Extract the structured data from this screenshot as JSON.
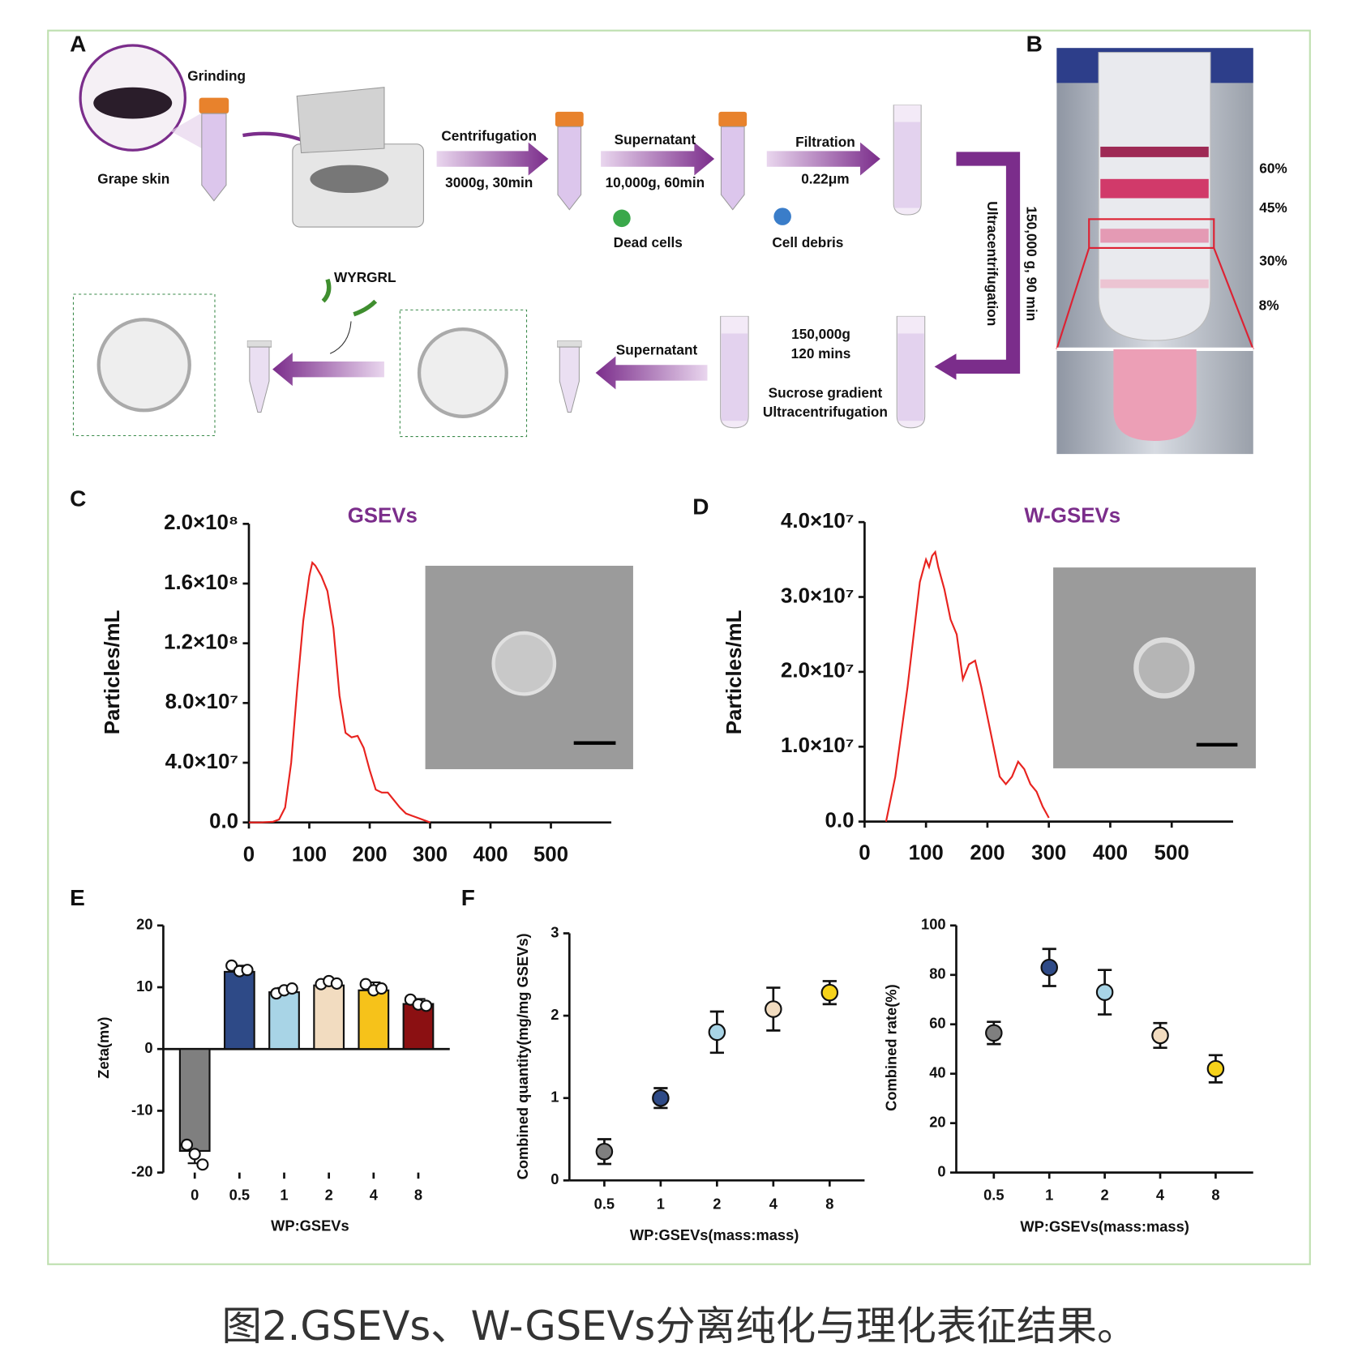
{
  "figure": {
    "caption": "图2.GSEVs、W-GSEVs分离纯化与理化表征结果。",
    "panel_labels": [
      "A",
      "B",
      "C",
      "D",
      "E",
      "F"
    ],
    "panel_a": {
      "grinding": "Grinding",
      "grape_skin": "Grape skin",
      "step1": "Centrifugation",
      "step1_cond": "3000g, 30min",
      "step2": "Supernatant",
      "step2_cond": "10,000g, 60min",
      "waste1": "Dead cells",
      "step3": "Filtration",
      "step3_cond": "0.22μm",
      "waste2": "Cell debris",
      "step4_cond": "150,000 g, 90 min",
      "step4": "Ultracentrifugation",
      "step5_cond1": "150,000g",
      "step5_cond2": "120 mins",
      "step5a": "Sucrose gradient",
      "step5b": "Ultracentrifugation",
      "step6": "Supernatant",
      "peptide": "WYRGRL"
    },
    "panel_b": {
      "layers": [
        "60%",
        "45%",
        "30%",
        "8%"
      ]
    }
  },
  "chart_data": [
    {
      "type": "line",
      "title": "GSEVs",
      "y_label": "Particles/mL",
      "color": "#e8231f",
      "x": [
        0,
        20,
        40,
        50,
        60,
        70,
        80,
        90,
        100,
        105,
        110,
        120,
        130,
        140,
        150,
        160,
        170,
        180,
        190,
        200,
        210,
        220,
        230,
        240,
        250,
        260,
        280,
        300
      ],
      "values": [
        0,
        0,
        500000.0,
        2000000.0,
        10000000.0,
        40000000.0,
        90000000.0,
        135000000.0,
        165000000.0,
        174000000.0,
        172000000.0,
        165000000.0,
        155000000.0,
        130000000.0,
        85000000.0,
        60000000.0,
        57000000.0,
        58000000.0,
        50000000.0,
        35000000.0,
        22000000.0,
        20000000.0,
        20000000.0,
        15000000.0,
        10000000.0,
        6000000.0,
        3000000.0,
        0
      ],
      "xlim": [
        0,
        600
      ],
      "xticks": [
        0,
        100,
        200,
        300,
        400,
        500
      ],
      "ylim": [
        0,
        200000000
      ],
      "yticks": [
        {
          "value": 0,
          "label": "0.0"
        },
        {
          "value": 40000000,
          "label": "4.0×10⁷"
        },
        {
          "value": 80000000,
          "label": "8.0×10⁷"
        },
        {
          "value": 120000000,
          "label": "1.2×10⁸"
        },
        {
          "value": 160000000,
          "label": "1.6×10⁸"
        },
        {
          "value": 200000000,
          "label": "2.0×10⁸"
        }
      ]
    },
    {
      "type": "line",
      "title": "W-GSEVs",
      "y_label": "Particles/mL",
      "color": "#e8231f",
      "x": [
        35,
        45,
        50,
        60,
        70,
        80,
        90,
        100,
        105,
        110,
        115,
        120,
        130,
        140,
        150,
        160,
        170,
        180,
        190,
        200,
        210,
        220,
        230,
        240,
        250,
        260,
        270,
        280,
        290,
        300
      ],
      "values": [
        0,
        4000000.0,
        6000000.0,
        12000000.0,
        18000000.0,
        25000000.0,
        32000000.0,
        35000000.0,
        34000000.0,
        35500000.0,
        36000000.0,
        34000000.0,
        31000000.0,
        27000000.0,
        25000000.0,
        19000000.0,
        21000000.0,
        21500000.0,
        18000000.0,
        14000000.0,
        10000000.0,
        6000000.0,
        5000000.0,
        6000000.0,
        8000000.0,
        7000000.0,
        5000000.0,
        4000000.0,
        2000000.0,
        500000.0
      ],
      "xlim": [
        0,
        600
      ],
      "xticks": [
        0,
        100,
        200,
        300,
        400,
        500
      ],
      "ylim": [
        0,
        40000000
      ],
      "yticks": [
        {
          "value": 0,
          "label": "0.0"
        },
        {
          "value": 10000000,
          "label": "1.0×10⁷"
        },
        {
          "value": 20000000,
          "label": "2.0×10⁷"
        },
        {
          "value": 30000000,
          "label": "3.0×10⁷"
        },
        {
          "value": 40000000,
          "label": "4.0×10⁷"
        }
      ]
    },
    {
      "type": "bar",
      "y_label": "Zeta(mv)",
      "x_label": "WP:GSEVs",
      "categories": [
        "0",
        "0.5",
        "1",
        "2",
        "4",
        "8"
      ],
      "values": [
        -16.5,
        12.5,
        9.2,
        10.3,
        9.5,
        7.3
      ],
      "errors": [
        2,
        1,
        0.7,
        0.7,
        1.3,
        0.8
      ],
      "points": [
        [
          -15.5,
          -17,
          -18.7
        ],
        [
          13.5,
          12.6,
          12.8
        ],
        [
          9,
          9.5,
          9.8
        ],
        [
          10.5,
          11,
          10.6
        ],
        [
          10.5,
          9.5,
          9.8
        ],
        [
          8,
          7.2,
          7
        ]
      ],
      "colors": [
        "#7f7f7f",
        "#2e4a87",
        "#a8d4e6",
        "#f2dcc0",
        "#f6c21a",
        "#8b1012"
      ],
      "ylim": [
        -20,
        20
      ],
      "yticks": [
        -20,
        -10,
        0,
        10,
        20
      ]
    },
    {
      "type": "scatter",
      "y_label": "Combined quantity(mg/mg GSEVs)",
      "x_label": "WP:GSEVs(mass:mass)",
      "categories": [
        "0.5",
        "1",
        "2",
        "4",
        "8"
      ],
      "values": [
        0.35,
        1.0,
        1.8,
        2.08,
        2.28
      ],
      "errors": [
        0.15,
        0.12,
        0.25,
        0.26,
        0.14
      ],
      "colors": [
        "#7f7f7f",
        "#2e4a87",
        "#a8d4e6",
        "#f2dcc0",
        "#f6d21a"
      ],
      "ylim": [
        0,
        3
      ],
      "yticks": [
        0,
        1,
        2,
        3
      ]
    },
    {
      "type": "scatter",
      "y_label": "Combined rate(%)",
      "x_label": "WP:GSEVs(mass:mass)",
      "categories": [
        "0.5",
        "1",
        "2",
        "4",
        "8"
      ],
      "values": [
        56.5,
        83,
        73,
        55.5,
        42
      ],
      "errors": [
        4.5,
        7.5,
        9,
        5,
        5.5
      ],
      "colors": [
        "#7f7f7f",
        "#2e4a87",
        "#a8d4e6",
        "#f2dcc0",
        "#f6d21a"
      ],
      "ylim": [
        0,
        100
      ],
      "yticks": [
        0,
        20,
        40,
        60,
        80,
        100
      ]
    }
  ]
}
